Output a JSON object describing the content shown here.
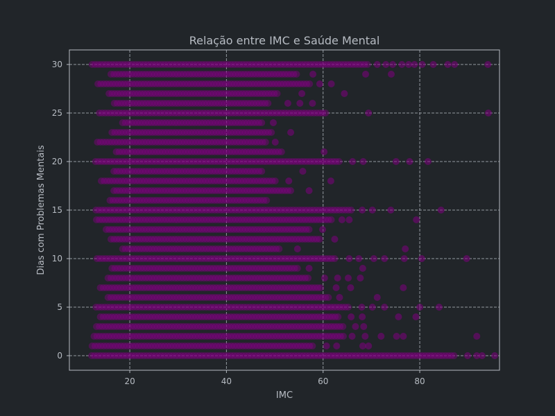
{
  "chart_data": {
    "type": "scatter",
    "title": "Relação entre IMC e Saúde Mental",
    "xlabel": "IMC",
    "ylabel": "Dias com Problemas Mentais",
    "xlim": [
      7.5,
      96.5
    ],
    "ylim": [
      -1.5,
      31.5
    ],
    "x_ticks": [
      20,
      40,
      60,
      80
    ],
    "y_ticks": [
      0,
      5,
      10,
      15,
      20,
      25,
      30
    ],
    "grid": true,
    "marker_color": "#800080",
    "background_color": "#212529",
    "text_color": "#b7bcc3",
    "grid_color": "#a8aeb5",
    "series": [
      {
        "rows": [
          {
            "y": 30,
            "range": [
              12.2,
              69.5
            ],
            "extras": [
              71.2,
              73.0,
              74.4,
              76.3,
              77.7,
              78.9,
              80.5,
              82.8,
              85.8,
              87.2,
              94.1
            ]
          },
          {
            "y": 29,
            "range": [
              16.1,
              55.0
            ],
            "extras": [
              57.9,
              68.8,
              74.1
            ]
          },
          {
            "y": 28,
            "range": [
              13.4,
              57.5
            ],
            "extras": [
              59.3,
              61.7
            ]
          },
          {
            "y": 27,
            "range": [
              15.7,
              50.7
            ],
            "extras": [
              55.6,
              64.4
            ]
          },
          {
            "y": 26,
            "range": [
              16.8,
              48.9
            ],
            "extras": [
              52.7,
              55.2,
              57.8
            ]
          },
          {
            "y": 25,
            "range": [
              13.7,
              60.8
            ],
            "extras": [
              69.4,
              94.2
            ]
          },
          {
            "y": 24,
            "range": [
              18.5,
              47.8
            ],
            "extras": [
              49.7
            ]
          },
          {
            "y": 23,
            "range": [
              16.3,
              49.6
            ],
            "extras": [
              53.3
            ]
          },
          {
            "y": 22,
            "range": [
              13.3,
              48.6
            ],
            "extras": [
              50.1
            ]
          },
          {
            "y": 21,
            "range": [
              17.2,
              51.8
            ],
            "extras": [
              60.2
            ]
          },
          {
            "y": 20,
            "range": [
              12.9,
              63.7
            ],
            "extras": [
              66.1,
              68.3,
              75.1,
              77.9,
              81.7
            ]
          },
          {
            "y": 19,
            "range": [
              16.7,
              47.3
            ],
            "extras": [
              55.8
            ]
          },
          {
            "y": 18,
            "range": [
              14.1,
              50.1
            ],
            "extras": [
              52.9,
              61.6
            ]
          },
          {
            "y": 17,
            "range": [
              16.7,
              53.4
            ],
            "extras": [
              57.1
            ]
          },
          {
            "y": 16,
            "range": [
              15.9,
              48.5
            ]
          },
          {
            "y": 15,
            "range": [
              13.0,
              66.3
            ],
            "extras": [
              68.1,
              70.2,
              74.0,
              84.4
            ]
          },
          {
            "y": 14,
            "range": [
              13.1,
              61.8
            ],
            "extras": [
              63.9,
              65.4,
              79.3
            ]
          },
          {
            "y": 13,
            "range": [
              15.1,
              57.6
            ],
            "extras": [
              59.9
            ]
          },
          {
            "y": 12,
            "range": [
              16.1,
              59.4
            ],
            "extras": [
              62.4
            ]
          },
          {
            "y": 11,
            "range": [
              18.5,
              51.1
            ],
            "extras": [
              54.7,
              77.0
            ]
          },
          {
            "y": 10,
            "range": [
              13.2,
              62.7
            ],
            "extras": [
              65.4,
              67.4,
              70.5,
              72.7,
              76.8,
              80.4,
              89.7
            ]
          },
          {
            "y": 9,
            "range": [
              16.3,
              55.2
            ],
            "extras": [
              57.1,
              68.2
            ]
          },
          {
            "y": 8,
            "range": [
              15.5,
              57.3
            ],
            "extras": [
              60.3,
              63.0,
              65.2,
              67.7
            ]
          },
          {
            "y": 7,
            "range": [
              13.9,
              59.6
            ],
            "extras": [
              62.7,
              65.7,
              76.6
            ]
          },
          {
            "y": 6,
            "range": [
              15.5,
              61.2
            ],
            "extras": [
              63.4,
              71.2
            ]
          },
          {
            "y": 5,
            "range": [
              13.0,
              65.2
            ],
            "extras": [
              68.0,
              70.2,
              72.7,
              80.0,
              84.0
            ]
          },
          {
            "y": 4,
            "range": [
              13.9,
              63.5
            ],
            "extras": [
              65.8,
              68.1,
              75.6,
              79.2
            ]
          },
          {
            "y": 3,
            "range": [
              13.1,
              64.6
            ],
            "extras": [
              66.7,
              68.4
            ]
          },
          {
            "y": 2,
            "range": [
              12.6,
              64.2
            ],
            "extras": [
              66.0,
              68.7,
              72.0,
              75.2,
              76.6,
              91.8
            ]
          },
          {
            "y": 1,
            "range": [
              12.2,
              57.8
            ],
            "extras": [
              60.7,
              62.8,
              68.2,
              69.4
            ]
          },
          {
            "y": 0,
            "range": [
              12.1,
              87.4
            ],
            "extras": [
              89.9,
              91.8,
              92.9,
              95.5
            ]
          }
        ]
      }
    ]
  }
}
